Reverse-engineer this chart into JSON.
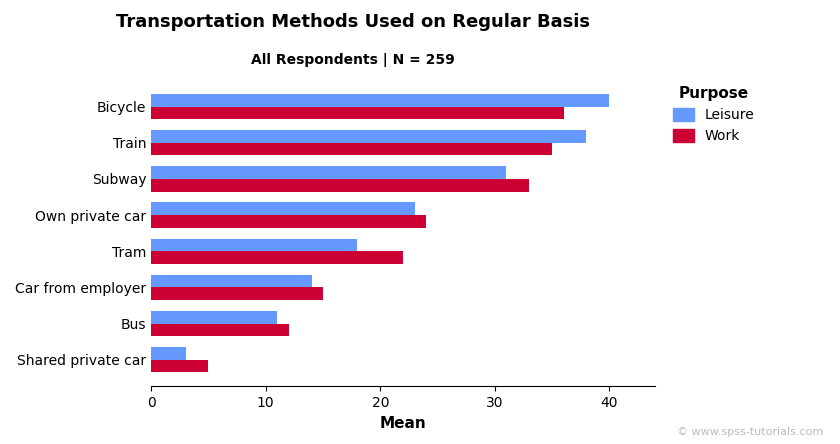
{
  "title": "Transportation Methods Used on Regular Basis",
  "subtitle": "All Respondents | N = 259",
  "xlabel": "Mean",
  "categories": [
    "Bicycle",
    "Train",
    "Subway",
    "Own private car",
    "Tram",
    "Car from employer",
    "Bus",
    "Shared private car"
  ],
  "leisure": [
    40,
    38,
    31,
    23,
    18,
    14,
    11,
    3
  ],
  "work": [
    36,
    35,
    33,
    24,
    22,
    15,
    12,
    5
  ],
  "color_leisure": "#6699FF",
  "color_work": "#CC0033",
  "xlim": [
    0,
    44
  ],
  "xticks": [
    0,
    10,
    20,
    30,
    40
  ],
  "legend_title": "Purpose",
  "legend_labels": [
    "Leisure",
    "Work"
  ],
  "watermark": "© www.spss-tutorials.com",
  "bar_height": 0.35,
  "title_fontsize": 13,
  "subtitle_fontsize": 10,
  "xlabel_fontsize": 11,
  "tick_fontsize": 10,
  "legend_fontsize": 10,
  "legend_title_fontsize": 11
}
